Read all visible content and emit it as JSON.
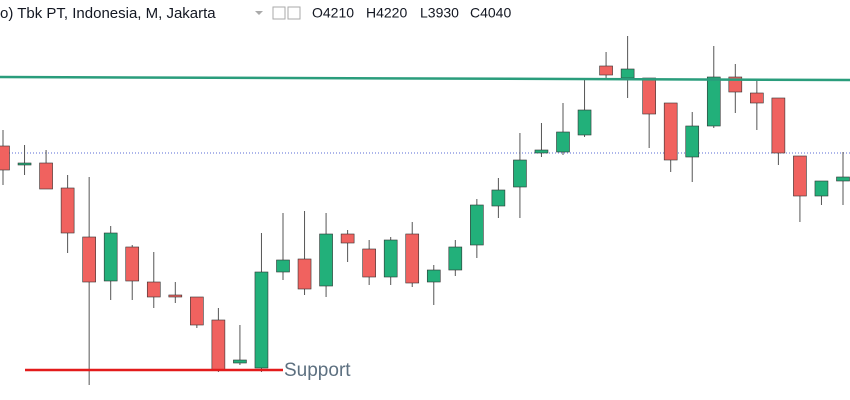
{
  "chart_data": {
    "type": "candlestick",
    "header": {
      "title": "o) Tbk PT, Indonesia, M, Jakarta",
      "ohlc": [
        "O4210",
        "H4220",
        "L3930",
        "C4040"
      ]
    },
    "up_color": "#22b07a",
    "down_color": "#f0625f",
    "open": [
      4068,
      3992,
      4000,
      3900,
      3704,
      3528,
      3664,
      3524,
      3472,
      3464,
      3372,
      3200,
      3180,
      3564,
      3616,
      3508,
      3716,
      3656,
      3544,
      3716,
      3524,
      3572,
      3672,
      3828,
      3904,
      4040,
      4044,
      4112,
      4388,
      4340,
      4340,
      4240,
      4024,
      4148,
      4344,
      4280,
      4260,
      4028,
      3868,
      3928
    ],
    "high": [
      4132,
      4072,
      4052,
      3952,
      3944,
      3748,
      3672,
      3644,
      3524,
      3464,
      3420,
      3352,
      3720,
      3800,
      3808,
      3800,
      3732,
      3692,
      3704,
      3764,
      3592,
      3692,
      3856,
      3940,
      4120,
      4160,
      4240,
      4332,
      4444,
      4508,
      4340,
      4240,
      4204,
      4468,
      4396,
      4332,
      4260,
      4028,
      3928,
      4044
    ],
    "low": [
      3912,
      3952,
      3896,
      3640,
      3112,
      3452,
      3452,
      3420,
      3440,
      3340,
      3164,
      3192,
      3164,
      3532,
      3472,
      3464,
      3604,
      3512,
      3512,
      3504,
      3432,
      3548,
      3620,
      3780,
      3780,
      4024,
      4032,
      4104,
      4340,
      4260,
      4060,
      3964,
      3924,
      4140,
      4200,
      4132,
      3992,
      3764,
      3832,
      3832
    ],
    "close": [
      3972,
      4000,
      3896,
      3720,
      3524,
      3720,
      3528,
      3464,
      3464,
      3352,
      3172,
      3212,
      3564,
      3612,
      3496,
      3716,
      3680,
      3544,
      3692,
      3520,
      3572,
      3664,
      3832,
      3892,
      4012,
      4052,
      4124,
      4212,
      4352,
      4376,
      4196,
      4012,
      4148,
      4344,
      4284,
      4240,
      4040,
      3868,
      3928,
      3944
    ],
    "ylim": [
      3052,
      4652
    ],
    "resistance": {
      "color": "#2a9d7c",
      "values": [
        4344,
        4332
      ]
    },
    "support": {
      "color": "#e31b1b",
      "value": 3172,
      "label": "Support"
    },
    "price_line": {
      "color": "#5a6bd6",
      "value": 4040
    }
  }
}
